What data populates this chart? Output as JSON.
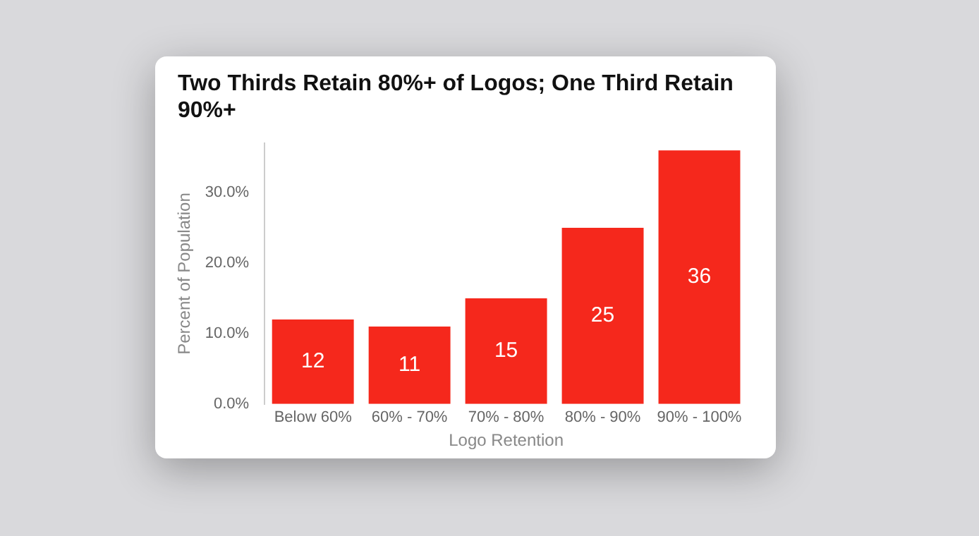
{
  "chart_data": {
    "type": "bar",
    "title": "Two Thirds Retain 80%+ of Logos; One Third Retain 90%+",
    "xlabel": "Logo Retention",
    "ylabel": "Percent of Population",
    "categories": [
      "Below 60%",
      "60% - 70%",
      "70% - 80%",
      "80% - 90%",
      "90% - 100%"
    ],
    "values": [
      12,
      11,
      15,
      25,
      36
    ],
    "color": "#f5281c",
    "data_labels": true,
    "ylim": [
      0,
      37
    ],
    "yticks": [
      {
        "value": 0,
        "label": "0.0%"
      },
      {
        "value": 10,
        "label": "10.0%"
      },
      {
        "value": 20,
        "label": "20.0%"
      },
      {
        "value": 30,
        "label": "30.0%"
      }
    ],
    "grid": false,
    "legend": false
  }
}
